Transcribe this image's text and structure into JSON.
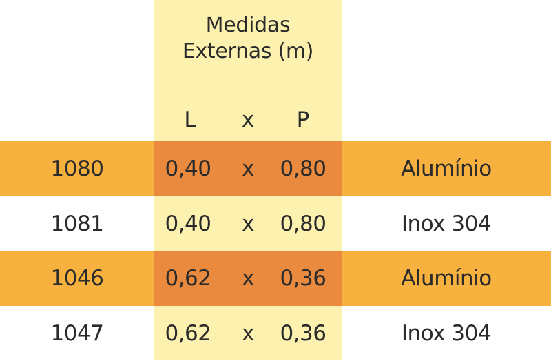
{
  "header": {
    "title_line1": "Medidas",
    "title_line2": "Externas (m)",
    "col_l": "L",
    "col_x": "x",
    "col_p": "P"
  },
  "rows": [
    {
      "code": "1080",
      "l": "0,40",
      "x": "x",
      "p": "0,80",
      "material": "Alumínio"
    },
    {
      "code": "1081",
      "l": "0,40",
      "x": "x",
      "p": "0,80",
      "material": "Inox 304"
    },
    {
      "code": "1046",
      "l": "0,62",
      "x": "x",
      "p": "0,36",
      "material": "Alumínio"
    },
    {
      "code": "1047",
      "l": "0,62",
      "x": "x",
      "p": "0,36",
      "material": "Inox 304"
    }
  ],
  "colors": {
    "measure_column_bg": "#fcf1ae",
    "highlight_row_bg": "#f6b13f",
    "highlight_cell_bg": "#ea8a3e",
    "text": "#2b2b2b"
  }
}
